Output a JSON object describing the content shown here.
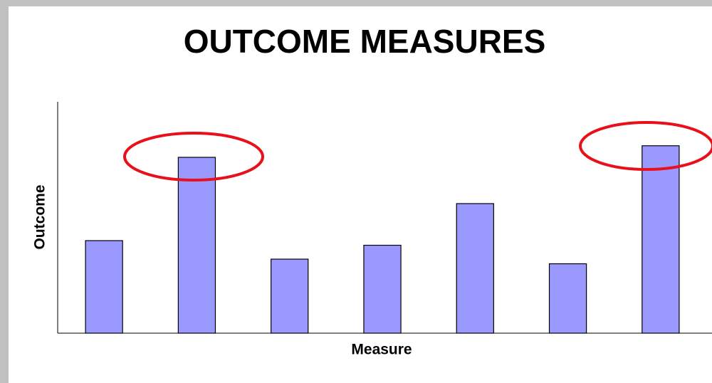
{
  "chart_data": {
    "type": "bar",
    "title": "OUTCOME MEASURES",
    "x_label": "Measure",
    "y_label": "Outcome",
    "categories": [
      null,
      null,
      null,
      null,
      null,
      null,
      null
    ],
    "values": [
      40,
      76,
      32,
      38,
      56,
      30,
      81
    ],
    "color": "#9999ff",
    "ylim": [
      0,
      100
    ],
    "grid": false
  }
}
